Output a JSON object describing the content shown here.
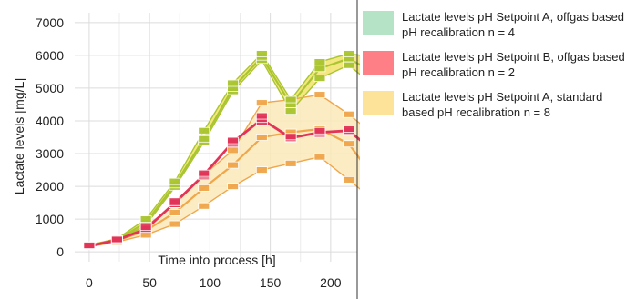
{
  "chart_data": {
    "type": "line",
    "xlabel": "Time into process [h]",
    "ylabel": "Lactate levels [mg/L]",
    "xlim": [
      -12,
      222
    ],
    "ylim": [
      -300,
      7300
    ],
    "x_ticks": [
      "0",
      "50",
      "100",
      "150",
      "200"
    ],
    "y_ticks": [
      "0",
      "1000",
      "2000",
      "3000",
      "4000",
      "5000",
      "6000",
      "7000"
    ],
    "grid": true,
    "legend_position": "right",
    "series": [
      {
        "name": "Lactate levels pH Setpoint A, offgas based pH recalibration n = 4",
        "color": "#a9c52f",
        "band_color": "#f3e36a",
        "x": [
          0,
          23,
          47,
          71,
          95,
          119,
          143,
          167,
          191,
          215,
          225
        ],
        "values": [
          180,
          360,
          900,
          2050,
          3450,
          5000,
          5950,
          4500,
          5600,
          5900,
          5700
        ],
        "low": [
          170,
          330,
          820,
          1980,
          3350,
          4900,
          5850,
          4300,
          5300,
          5700,
          5400
        ],
        "high": [
          200,
          400,
          1000,
          2150,
          3700,
          5150,
          6050,
          4650,
          5800,
          6050,
          6000
        ]
      },
      {
        "name": "Lactate levels pH Setpoint B, offgas based pH recalibration n = 2",
        "color": "#e23458",
        "x": [
          0,
          23,
          47,
          71,
          95,
          119,
          143,
          167,
          191,
          215,
          225
        ],
        "values": [
          180,
          360,
          700,
          1500,
          2350,
          3350,
          4050,
          3480,
          3650,
          3700,
          3400
        ],
        "low": [
          170,
          340,
          660,
          1450,
          2300,
          3300,
          3950,
          3450,
          3600,
          3650,
          3300
        ],
        "high": [
          200,
          380,
          750,
          1550,
          2400,
          3400,
          4150,
          3520,
          3700,
          3750,
          3500
        ]
      },
      {
        "name": "Lactate levels pH Setpoint A, standard based pH recalibration n = 8",
        "color": "#f0a64a",
        "band_color": "#fce9b8",
        "x": [
          0,
          23,
          47,
          71,
          95,
          119,
          143,
          167,
          191,
          215,
          225
        ],
        "values": [
          180,
          340,
          650,
          1200,
          1950,
          2650,
          3500,
          3650,
          3750,
          3300,
          2800
        ],
        "low": [
          160,
          300,
          520,
          850,
          1400,
          2000,
          2500,
          2700,
          2900,
          2200,
          1900
        ],
        "high": [
          210,
          400,
          780,
          1450,
          2350,
          3100,
          4550,
          4650,
          4800,
          4200,
          3900
        ]
      }
    ]
  },
  "legend": {
    "items": [
      {
        "label": "Lactate levels pH Setpoint A, offgas based pH recalibration n = 4",
        "color": "#b5e3c6"
      },
      {
        "label": "Lactate levels pH Setpoint B, offgas based pH recalibration n = 2",
        "color": "#ff7f86"
      },
      {
        "label": "Lactate levels pH Setpoint A, standard based pH recalibration n = 8",
        "color": "#fde29a"
      }
    ]
  }
}
